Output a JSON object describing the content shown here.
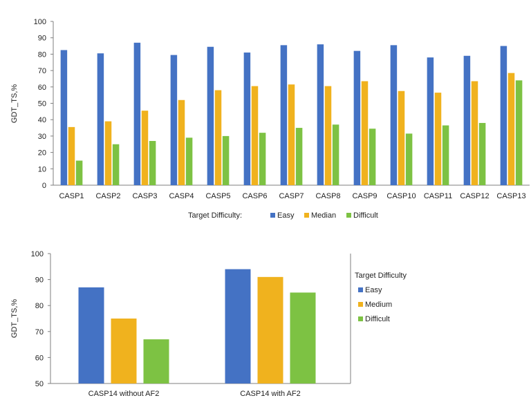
{
  "chart_data": [
    {
      "type": "bar",
      "title": "",
      "xlabel": "",
      "ylabel": "GDT_TS,%",
      "ylim": [
        0,
        100
      ],
      "yticks": [
        0,
        10,
        20,
        30,
        40,
        50,
        60,
        70,
        80,
        90,
        100
      ],
      "grid": false,
      "legend": {
        "title": "Target Difficulty:",
        "position": "bottom"
      },
      "categories": [
        "CASP1",
        "CASP2",
        "CASP3",
        "CASP4",
        "CASP5",
        "CASP6",
        "CASP7",
        "CASP8",
        "CASP9",
        "CASP10",
        "CASP11",
        "CASP12",
        "CASP13"
      ],
      "series": [
        {
          "name": "Easy",
          "color": "#4472C4",
          "values": [
            82.5,
            80.5,
            87,
            79.5,
            84.5,
            81,
            85.5,
            86,
            82,
            85.5,
            78,
            79,
            85
          ]
        },
        {
          "name": "Median",
          "color": "#F0B21E",
          "values": [
            35.5,
            39,
            45.5,
            52,
            58,
            60.5,
            61.5,
            60.5,
            63.5,
            57.5,
            56.5,
            63.5,
            68.5
          ]
        },
        {
          "name": "Difficult",
          "color": "#7DC243",
          "values": [
            15,
            25,
            27,
            29,
            30,
            32,
            35,
            37,
            34.5,
            31.5,
            36.5,
            38,
            64
          ]
        }
      ]
    },
    {
      "type": "bar",
      "title": "",
      "xlabel": "",
      "ylabel": "GDT_TS,%",
      "ylim": [
        50,
        100
      ],
      "yticks": [
        50,
        60,
        70,
        80,
        90,
        100
      ],
      "grid": false,
      "legend": {
        "title": "Target Difficulty",
        "position": "right"
      },
      "categories": [
        "CASP14 without AF2",
        "CASP14 with AF2"
      ],
      "series": [
        {
          "name": "Easy",
          "color": "#4472C4",
          "values": [
            87,
            94
          ]
        },
        {
          "name": "Medium",
          "color": "#F0B21E",
          "values": [
            75,
            91
          ]
        },
        {
          "name": "Difficult",
          "color": "#7DC243",
          "values": [
            67,
            85
          ]
        }
      ]
    }
  ]
}
